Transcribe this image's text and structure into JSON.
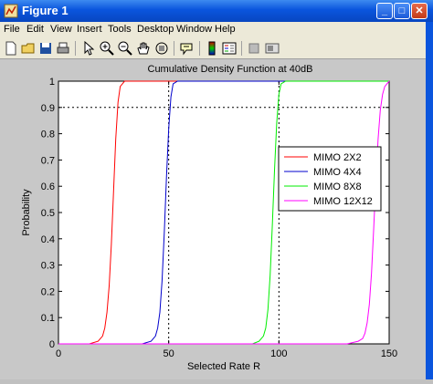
{
  "window": {
    "title": "Figure 1"
  },
  "menu": [
    "File",
    "Edit",
    "View",
    "Insert",
    "Tools",
    "Desktop",
    "Window",
    "Help"
  ],
  "toolbar": [
    "new-file-icon",
    "open-folder-icon",
    "save-icon",
    "print-icon",
    "pointer-icon",
    "zoom-in-icon",
    "zoom-out-icon",
    "pan-hand-icon",
    "rotate-3d-icon",
    "data-cursor-icon",
    "colorbar-icon",
    "legend-icon",
    "hide-plot-tools-icon",
    "show-plot-tools-icon"
  ],
  "chart_data": {
    "type": "line",
    "title": "Cumulative Density Function at 40dB",
    "xlabel": "Selected Rate R",
    "ylabel": "Probability",
    "xlim": [
      0,
      150
    ],
    "ylim": [
      0,
      1
    ],
    "xticks": [
      0,
      50,
      100,
      150
    ],
    "yticks": [
      0,
      0.1,
      0.2,
      0.3,
      0.4,
      0.5,
      0.6,
      0.7,
      0.8,
      0.9,
      1
    ],
    "grid": "dotted lines at x=50, x=100 and y=0.9",
    "legend_position": "top-right",
    "series": [
      {
        "name": "MIMO 2X2",
        "color": "#ff0000",
        "x": [
          14,
          18,
          20,
          21,
          22,
          23,
          24,
          25,
          26,
          27,
          28,
          30
        ],
        "y": [
          0,
          0.01,
          0.03,
          0.06,
          0.12,
          0.22,
          0.38,
          0.58,
          0.78,
          0.92,
          0.98,
          1
        ]
      },
      {
        "name": "MIMO 4X4",
        "color": "#0000cc",
        "x": [
          38,
          42,
          44,
          45,
          46,
          47,
          48,
          49,
          50,
          51,
          52,
          54
        ],
        "y": [
          0,
          0.01,
          0.03,
          0.06,
          0.12,
          0.24,
          0.42,
          0.64,
          0.82,
          0.94,
          0.99,
          1
        ]
      },
      {
        "name": "MIMO 8X8",
        "color": "#00ee00",
        "x": [
          88,
          91,
          93,
          94,
          95,
          96,
          97,
          98,
          99,
          100,
          101,
          103
        ],
        "y": [
          0,
          0.01,
          0.03,
          0.06,
          0.13,
          0.26,
          0.45,
          0.66,
          0.84,
          0.95,
          0.99,
          1
        ]
      },
      {
        "name": "MIMO 12X12",
        "color": "#ff00ff",
        "x": [
          131,
          136,
          138,
          139,
          140,
          141,
          142,
          143,
          144,
          145,
          146,
          147,
          148,
          150
        ],
        "y": [
          0,
          0.01,
          0.02,
          0.04,
          0.08,
          0.15,
          0.27,
          0.44,
          0.62,
          0.78,
          0.89,
          0.95,
          0.98,
          1
        ]
      }
    ]
  }
}
